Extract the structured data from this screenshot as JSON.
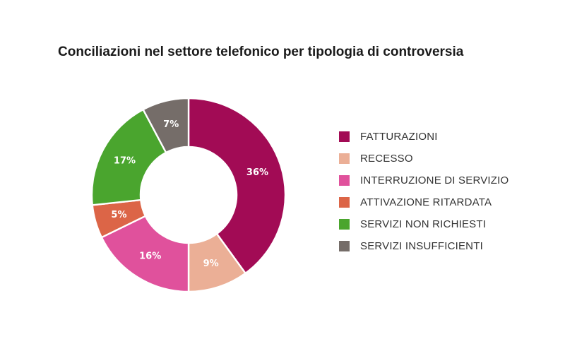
{
  "chart_data": {
    "type": "pie",
    "title": "Conciliazioni nel settore telefonico per tipologia di controversia",
    "categories": [
      "FATTURAZIONI",
      "RECESSO",
      "INTERRUZIONE DI SERVIZIO",
      "ATTIVAZIONE RITARDATA",
      "SERVIZI NON RICHIESTI",
      "SERVIZI INSUFFICIENTI"
    ],
    "values": [
      36,
      9,
      16,
      5,
      17,
      7
    ],
    "value_labels": [
      "36%",
      "9%",
      "16%",
      "5%",
      "17%",
      "7%"
    ],
    "colors": [
      "#a20b55",
      "#ebaf96",
      "#e0519c",
      "#dc6547",
      "#4aa52e",
      "#756d69"
    ],
    "donut": true,
    "legend": "right"
  }
}
